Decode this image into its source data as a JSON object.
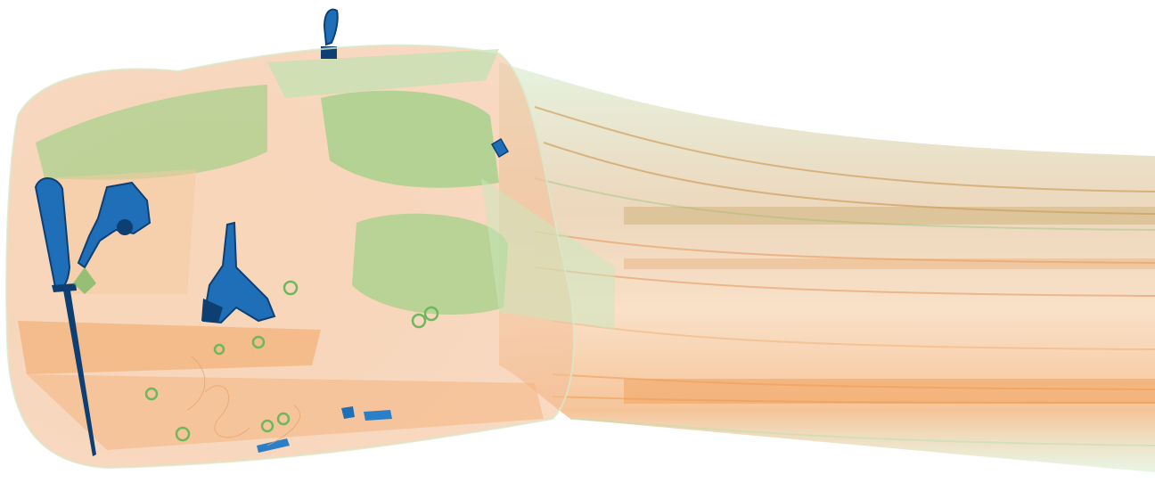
{
  "scan": {
    "kind": "x-ray baggage scan",
    "palette": {
      "organic": "#f0a56b",
      "organic_light": "#f8d3b4",
      "inorganic": "#8fcf7c",
      "inorganic_dark": "#6db85c",
      "metal": "#1f6fb8",
      "metal_dark": "#0d3f73",
      "background": "#ffffff"
    },
    "objects": [
      {
        "name": "knife",
        "material": "metal",
        "icon": "knife-icon"
      },
      {
        "name": "revolver",
        "material": "metal",
        "icon": "revolver-icon"
      },
      {
        "name": "pistol",
        "material": "metal",
        "icon": "pistol-icon"
      },
      {
        "name": "luggage-tag",
        "material": "metal",
        "icon": "tag-icon"
      },
      {
        "name": "zipper-pullers",
        "material": "metal",
        "icon": "zipper-icon"
      },
      {
        "name": "small-metal-part",
        "material": "metal",
        "icon": "clip-icon"
      },
      {
        "name": "clothing-fabric",
        "material": "organic",
        "icon": "fabric-icon"
      },
      {
        "name": "bag-shell",
        "material": "inorganic",
        "icon": "bag-icon"
      }
    ]
  }
}
